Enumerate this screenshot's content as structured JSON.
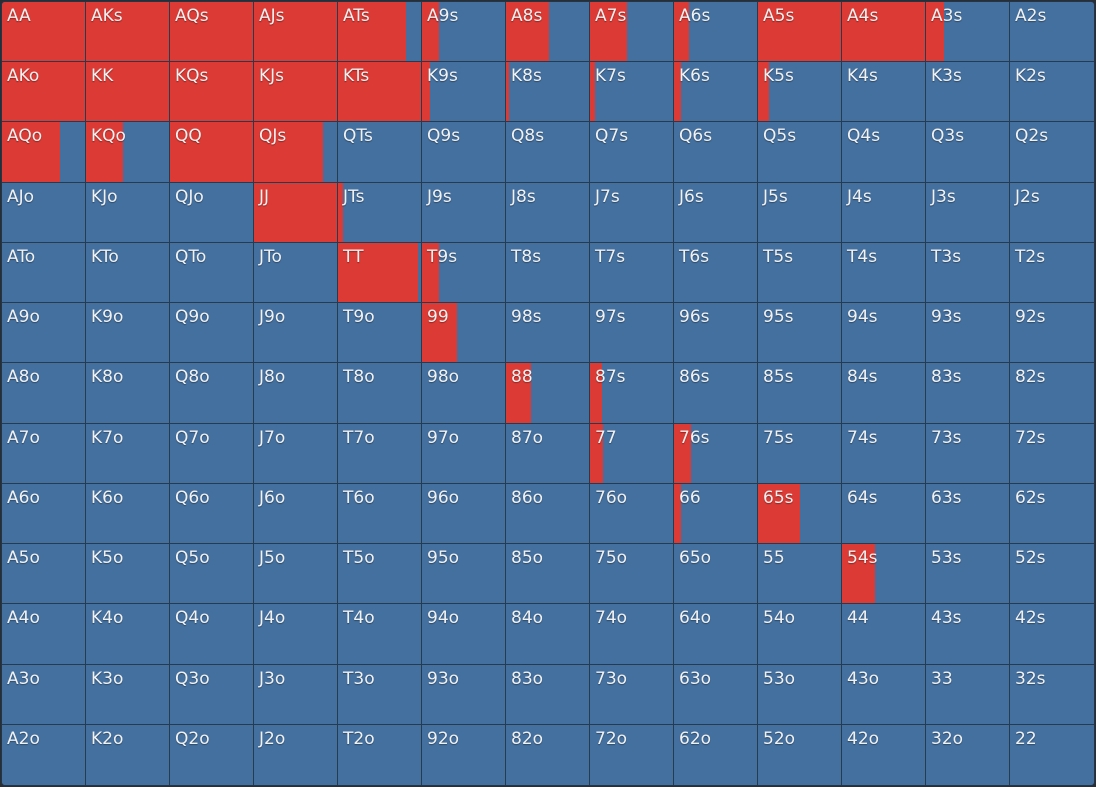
{
  "colors": {
    "raise": "#db3a35",
    "fold": "#44709f",
    "grid_line": "#263a50"
  },
  "rows": [
    [
      [
        "AA",
        1
      ],
      [
        "AKs",
        1
      ],
      [
        "AQs",
        1
      ],
      [
        "AJs",
        1
      ],
      [
        "ATs",
        0.82
      ],
      [
        "A9s",
        0.21
      ],
      [
        "A8s",
        0.52
      ],
      [
        "A7s",
        0.44
      ],
      [
        "A6s",
        0.18
      ],
      [
        "A5s",
        1
      ],
      [
        "A4s",
        1
      ],
      [
        "A3s",
        0.22
      ],
      [
        "A2s",
        0
      ]
    ],
    [
      [
        "AKo",
        1
      ],
      [
        "KK",
        1
      ],
      [
        "KQs",
        1
      ],
      [
        "KJs",
        1
      ],
      [
        "KTs",
        1
      ],
      [
        "K9s",
        0.1
      ],
      [
        "K8s",
        0.04
      ],
      [
        "K7s",
        0.06
      ],
      [
        "K6s",
        0.09
      ],
      [
        "K5s",
        0.13
      ],
      [
        "K4s",
        0
      ],
      [
        "K3s",
        0
      ],
      [
        "K2s",
        0
      ]
    ],
    [
      [
        "AQo",
        0.7
      ],
      [
        "KQo",
        0.44
      ],
      [
        "QQ",
        1
      ],
      [
        "QJs",
        0.83
      ],
      [
        "QTs",
        0
      ],
      [
        "Q9s",
        0
      ],
      [
        "Q8s",
        0
      ],
      [
        "Q7s",
        0
      ],
      [
        "Q6s",
        0
      ],
      [
        "Q5s",
        0
      ],
      [
        "Q4s",
        0
      ],
      [
        "Q3s",
        0
      ],
      [
        "Q2s",
        0
      ]
    ],
    [
      [
        "AJo",
        0
      ],
      [
        "KJo",
        0
      ],
      [
        "QJo",
        0
      ],
      [
        "JJ",
        1
      ],
      [
        "JTs",
        0.06
      ],
      [
        "J9s",
        0
      ],
      [
        "J8s",
        0
      ],
      [
        "J7s",
        0
      ],
      [
        "J6s",
        0
      ],
      [
        "J5s",
        0
      ],
      [
        "J4s",
        0
      ],
      [
        "J3s",
        0
      ],
      [
        "J2s",
        0
      ]
    ],
    [
      [
        "ATo",
        0
      ],
      [
        "KTo",
        0
      ],
      [
        "QTo",
        0
      ],
      [
        "JTo",
        0
      ],
      [
        "TT",
        0.96
      ],
      [
        "T9s",
        0.2
      ],
      [
        "T8s",
        0
      ],
      [
        "T7s",
        0
      ],
      [
        "T6s",
        0
      ],
      [
        "T5s",
        0
      ],
      [
        "T4s",
        0
      ],
      [
        "T3s",
        0
      ],
      [
        "T2s",
        0
      ]
    ],
    [
      [
        "A9o",
        0
      ],
      [
        "K9o",
        0
      ],
      [
        "Q9o",
        0
      ],
      [
        "J9o",
        0
      ],
      [
        "T9o",
        0
      ],
      [
        "99",
        0.42
      ],
      [
        "98s",
        0
      ],
      [
        "97s",
        0
      ],
      [
        "96s",
        0
      ],
      [
        "95s",
        0
      ],
      [
        "94s",
        0
      ],
      [
        "93s",
        0
      ],
      [
        "92s",
        0
      ]
    ],
    [
      [
        "A8o",
        0
      ],
      [
        "K8o",
        0
      ],
      [
        "Q8o",
        0
      ],
      [
        "J8o",
        0
      ],
      [
        "T8o",
        0
      ],
      [
        "98o",
        0
      ],
      [
        "88",
        0.3
      ],
      [
        "87s",
        0.14
      ],
      [
        "86s",
        0
      ],
      [
        "85s",
        0
      ],
      [
        "84s",
        0
      ],
      [
        "83s",
        0
      ],
      [
        "82s",
        0
      ]
    ],
    [
      [
        "A7o",
        0
      ],
      [
        "K7o",
        0
      ],
      [
        "Q7o",
        0
      ],
      [
        "J7o",
        0
      ],
      [
        "T7o",
        0
      ],
      [
        "97o",
        0
      ],
      [
        "87o",
        0
      ],
      [
        "77",
        0.16
      ],
      [
        "76s",
        0.21
      ],
      [
        "75s",
        0
      ],
      [
        "74s",
        0
      ],
      [
        "73s",
        0
      ],
      [
        "72s",
        0
      ]
    ],
    [
      [
        "A6o",
        0
      ],
      [
        "K6o",
        0
      ],
      [
        "Q6o",
        0
      ],
      [
        "J6o",
        0
      ],
      [
        "T6o",
        0
      ],
      [
        "96o",
        0
      ],
      [
        "86o",
        0
      ],
      [
        "76o",
        0
      ],
      [
        "66",
        0.08
      ],
      [
        "65s",
        0.5
      ],
      [
        "64s",
        0
      ],
      [
        "63s",
        0
      ],
      [
        "62s",
        0
      ]
    ],
    [
      [
        "A5o",
        0
      ],
      [
        "K5o",
        0
      ],
      [
        "Q5o",
        0
      ],
      [
        "J5o",
        0
      ],
      [
        "T5o",
        0
      ],
      [
        "95o",
        0
      ],
      [
        "85o",
        0
      ],
      [
        "75o",
        0
      ],
      [
        "65o",
        0
      ],
      [
        "55",
        0
      ],
      [
        "54s",
        0.4
      ],
      [
        "53s",
        0
      ],
      [
        "52s",
        0
      ]
    ],
    [
      [
        "A4o",
        0
      ],
      [
        "K4o",
        0
      ],
      [
        "Q4o",
        0
      ],
      [
        "J4o",
        0
      ],
      [
        "T4o",
        0
      ],
      [
        "94o",
        0
      ],
      [
        "84o",
        0
      ],
      [
        "74o",
        0
      ],
      [
        "64o",
        0
      ],
      [
        "54o",
        0
      ],
      [
        "44",
        0
      ],
      [
        "43s",
        0
      ],
      [
        "42s",
        0
      ]
    ],
    [
      [
        "A3o",
        0
      ],
      [
        "K3o",
        0
      ],
      [
        "Q3o",
        0
      ],
      [
        "J3o",
        0
      ],
      [
        "T3o",
        0
      ],
      [
        "93o",
        0
      ],
      [
        "83o",
        0
      ],
      [
        "73o",
        0
      ],
      [
        "63o",
        0
      ],
      [
        "53o",
        0
      ],
      [
        "43o",
        0
      ],
      [
        "33",
        0
      ],
      [
        "32s",
        0
      ]
    ],
    [
      [
        "A2o",
        0
      ],
      [
        "K2o",
        0
      ],
      [
        "Q2o",
        0
      ],
      [
        "J2o",
        0
      ],
      [
        "T2o",
        0
      ],
      [
        "92o",
        0
      ],
      [
        "82o",
        0
      ],
      [
        "72o",
        0
      ],
      [
        "62o",
        0
      ],
      [
        "52o",
        0
      ],
      [
        "42o",
        0
      ],
      [
        "32o",
        0
      ],
      [
        "22",
        0
      ]
    ]
  ]
}
